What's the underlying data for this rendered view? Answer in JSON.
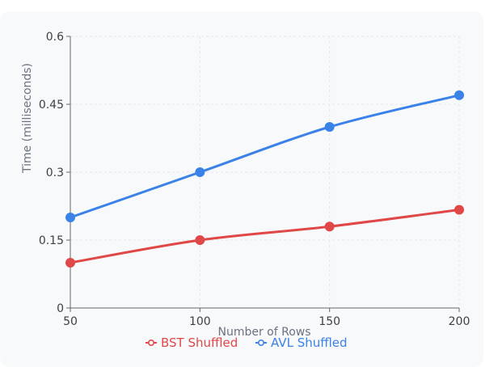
{
  "colors": {
    "bst": "#e04848",
    "avl": "#3b82e8",
    "grid": "#e3e6ea",
    "axis": "#666666"
  },
  "chart_data": {
    "type": "line",
    "x": [
      50,
      100,
      150,
      200
    ],
    "xlabel": "Number of Rows",
    "ylabel": "Time (milliseconds)",
    "xlim": [
      50,
      200
    ],
    "ylim": [
      0,
      0.6
    ],
    "x_ticks": [
      "50",
      "100",
      "150",
      "200"
    ],
    "y_ticks": [
      "0",
      "0.15",
      "0.3",
      "0.45",
      "0.6"
    ],
    "grid": true,
    "legend_position": "bottom",
    "series": [
      {
        "name": "BST Shuffled",
        "color": "#e04848",
        "values": [
          0.1,
          0.15,
          0.18,
          0.217
        ]
      },
      {
        "name": "AVL Shuffled",
        "color": "#3b82e8",
        "values": [
          0.2,
          0.3,
          0.4,
          0.47
        ]
      }
    ]
  }
}
